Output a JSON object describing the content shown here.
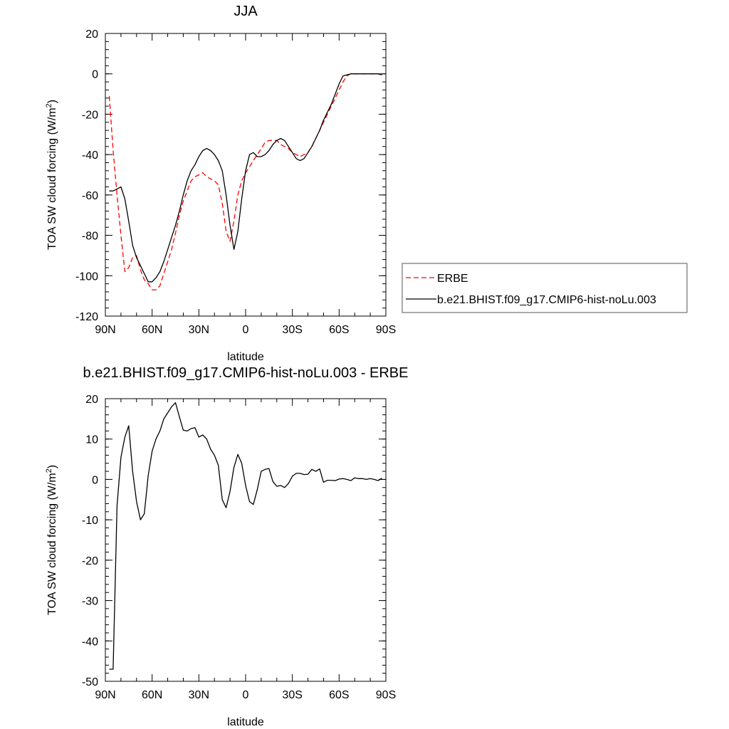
{
  "chart_data": [
    {
      "type": "line",
      "title": "JJA",
      "xlabel": "latitude",
      "ylabel": "TOA SW cloud forcing (W/m",
      "ylabel_sup": "2",
      "ylabel_close": ")",
      "xlim": [
        90,
        -90
      ],
      "ylim": [
        -120,
        20
      ],
      "x_ticks": [
        90,
        60,
        30,
        0,
        -30,
        -60,
        -90
      ],
      "x_tick_labels": [
        "90N",
        "60N",
        "30N",
        "0",
        "30S",
        "60S",
        "90S"
      ],
      "y_ticks": [
        20,
        0,
        -20,
        -40,
        -60,
        -80,
        -100,
        -120
      ],
      "y_tick_labels": [
        "20",
        "0",
        "-20",
        "-40",
        "-60",
        "-80",
        "-100",
        "-120"
      ],
      "legend_position": "right",
      "series": [
        {
          "name": "ERBE",
          "color": "#ff0000",
          "dash": "dashed",
          "x": [
            87.5,
            85,
            82.5,
            80,
            77.5,
            75,
            72.5,
            70,
            67.5,
            65,
            62.5,
            60,
            57.5,
            55,
            52.5,
            50,
            47.5,
            45,
            42.5,
            40,
            37.5,
            35,
            32.5,
            30,
            27.5,
            25,
            22.5,
            20,
            17.5,
            15,
            12.5,
            10,
            7.5,
            5,
            2.5,
            0,
            -2.5,
            -5,
            -7.5,
            -10,
            -12.5,
            -15,
            -17.5,
            -20,
            -22.5,
            -25,
            -27.5,
            -30,
            -32.5,
            -35,
            -37.5,
            -40,
            -42.5,
            -45,
            -47.5,
            -50,
            -52.5,
            -55,
            -57.5,
            -60,
            -62.5,
            -65,
            -67.5,
            -70,
            -72.5,
            -75,
            -77.5,
            -80,
            -82.5,
            -85,
            -87.5
          ],
          "y": [
            -11,
            -38,
            -60,
            -80,
            -98,
            -96,
            -91,
            -90,
            -97,
            -102,
            -104,
            -107,
            -107,
            -105,
            -99,
            -93,
            -87,
            -79,
            -70,
            -63,
            -58,
            -53,
            -51,
            -50,
            -49,
            -51,
            -52,
            -53,
            -55,
            -64,
            -78,
            -83,
            -73,
            -60,
            -53,
            -49,
            -46,
            -43,
            -40,
            -37,
            -34,
            -33,
            -33,
            -33,
            -35,
            -36,
            -37,
            -39,
            -40,
            -41,
            -40,
            -39,
            -36,
            -32,
            -28,
            -24,
            -20,
            -16,
            -12,
            -8,
            -4,
            -1,
            0,
            0,
            0,
            0,
            0,
            0,
            0,
            0,
            -0.5
          ]
        },
        {
          "name": "b.e21.BHIST.f09_g17.CMIP6-hist-noLu.003",
          "color": "#000000",
          "dash": "solid",
          "x": [
            87.5,
            85,
            82.5,
            80,
            77.5,
            75,
            72.5,
            70,
            67.5,
            65,
            62.5,
            60,
            57.5,
            55,
            52.5,
            50,
            47.5,
            45,
            42.5,
            40,
            37.5,
            35,
            32.5,
            30,
            27.5,
            25,
            22.5,
            20,
            17.5,
            15,
            12.5,
            10,
            7.5,
            5,
            2.5,
            0,
            -2.5,
            -5,
            -7.5,
            -10,
            -12.5,
            -15,
            -17.5,
            -20,
            -22.5,
            -25,
            -27.5,
            -30,
            -32.5,
            -35,
            -37.5,
            -40,
            -42.5,
            -45,
            -47.5,
            -50,
            -52.5,
            -55,
            -57.5,
            -60,
            -62.5,
            -65,
            -67.5,
            -70,
            -72.5,
            -75,
            -77.5,
            -80,
            -82.5,
            -85,
            -87.5
          ],
          "y": [
            -58,
            -58,
            -57,
            -56,
            -62,
            -73,
            -85,
            -91,
            -95,
            -99,
            -103,
            -103,
            -101,
            -98,
            -93,
            -87,
            -81,
            -75,
            -68,
            -60,
            -53,
            -48,
            -45,
            -41,
            -38,
            -37,
            -38,
            -40,
            -43,
            -48,
            -60,
            -75,
            -87,
            -78,
            -62,
            -48,
            -40,
            -39,
            -41,
            -41,
            -40,
            -38,
            -35,
            -33,
            -32,
            -33,
            -36,
            -39,
            -42,
            -43,
            -42,
            -39,
            -36,
            -32,
            -28,
            -23,
            -19,
            -15,
            -10,
            -5,
            -1,
            -0.5,
            0,
            0,
            0,
            0,
            0,
            0,
            0,
            0,
            -0.5
          ]
        }
      ]
    },
    {
      "type": "line",
      "title": "b.e21.BHIST.f09_g17.CMIP6-hist-noLu.003 - ERBE",
      "xlabel": "latitude",
      "ylabel": "TOA SW cloud forcing (W/m",
      "ylabel_sup": "2",
      "ylabel_close": ")",
      "xlim": [
        90,
        -90
      ],
      "ylim": [
        -50,
        20
      ],
      "x_ticks": [
        90,
        60,
        30,
        0,
        -30,
        -60,
        -90
      ],
      "x_tick_labels": [
        "90N",
        "60N",
        "30N",
        "0",
        "30S",
        "60S",
        "90S"
      ],
      "y_ticks": [
        20,
        10,
        0,
        -10,
        -20,
        -30,
        -40,
        -50
      ],
      "y_tick_labels": [
        "20",
        "10",
        "0",
        "-10",
        "-20",
        "-30",
        "-40",
        "-50"
      ],
      "series": [
        {
          "color": "#000000",
          "dash": "solid",
          "x": [
            87.5,
            85,
            82.5,
            80,
            77.5,
            75,
            72.5,
            70,
            67.5,
            65,
            62.5,
            60,
            57.5,
            55,
            52.5,
            50,
            47.5,
            45,
            42.5,
            40,
            37.5,
            35,
            32.5,
            30,
            27.5,
            25,
            22.5,
            20,
            17.5,
            15,
            12.5,
            10,
            7.5,
            5,
            2.5,
            0,
            -2.5,
            -5,
            -7.5,
            -10,
            -12.5,
            -15,
            -17.5,
            -20,
            -22.5,
            -25,
            -27.5,
            -30,
            -32.5,
            -35,
            -37.5,
            -40,
            -42.5,
            -45,
            -47.5,
            -50,
            -52.5,
            -55,
            -57.5,
            -60,
            -62.5,
            -65,
            -67.5,
            -70,
            -72.5,
            -75,
            -77.5,
            -80,
            -82.5,
            -85,
            -87.5
          ],
          "y": [
            -47,
            -47,
            -6.5,
            5.5,
            10.5,
            13.3,
            2,
            -5.5,
            -10,
            -8.5,
            1,
            7,
            10,
            12,
            15,
            16.5,
            18,
            19,
            15.5,
            12.2,
            12,
            12.6,
            12.8,
            10.5,
            11,
            10,
            7.5,
            6,
            3.5,
            -5,
            -7,
            -3,
            3,
            6.2,
            4,
            -1.5,
            -5.5,
            -6.2,
            -2.5,
            2,
            2.5,
            2.7,
            -0.5,
            -1.7,
            -1.5,
            -2,
            -1,
            0.8,
            1.5,
            1.5,
            1.2,
            1.3,
            2.5,
            2,
            2.6,
            -0.7,
            -0.2,
            -0.2,
            -0.3,
            0.1,
            0.2,
            0,
            -0.3,
            0.4,
            0.2,
            0.2,
            0,
            0.2,
            0,
            -0.3,
            0.3
          ]
        }
      ]
    }
  ]
}
